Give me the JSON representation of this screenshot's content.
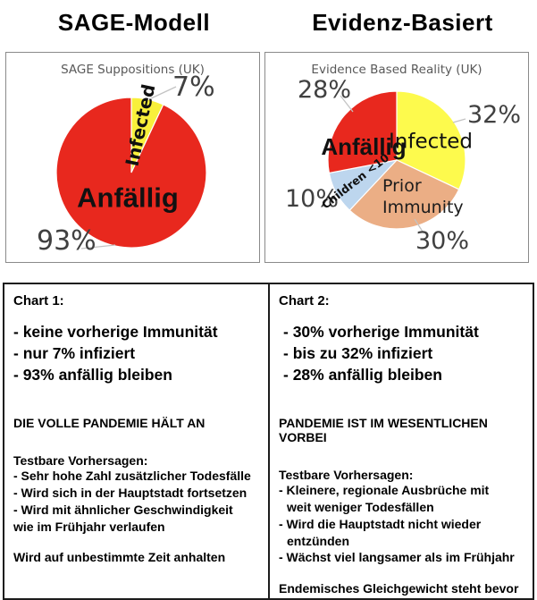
{
  "header": {
    "left_title": "SAGE-Modell",
    "right_title": "Evidenz-Basiert"
  },
  "chart_data": [
    {
      "type": "pie",
      "title": "SAGE Suppositions (UK)",
      "start_angle_deg": 0,
      "direction": "clockwise",
      "legend": "none",
      "slices": [
        {
          "label": "Infected",
          "value": 7,
          "callout": "7%",
          "color": "#f8ef3b"
        },
        {
          "label": "Anfällig",
          "value": 93,
          "callout": "93%",
          "color": "#e8281e"
        }
      ]
    },
    {
      "type": "pie",
      "title": "Evidence Based Reality (UK)",
      "start_angle_deg": 0,
      "direction": "clockwise",
      "legend": "none",
      "slices": [
        {
          "label": "Infected",
          "value": 32,
          "callout": "32%",
          "color": "#fdfa4d"
        },
        {
          "label": "Prior Immunity",
          "value": 30,
          "callout": "30%",
          "color": "#ebae85"
        },
        {
          "label": "Children <10",
          "value": 10,
          "callout": "10%",
          "color": "#bdd6ee"
        },
        {
          "label": "Anfällig",
          "value": 28,
          "callout": "28%",
          "color": "#e8281e"
        }
      ]
    }
  ],
  "notes": {
    "left": {
      "heading": "Chart 1:",
      "bullets": [
        "- keine vorherige Immunität",
        "- nur 7% infiziert",
        "- 93% anfällig bleiben"
      ],
      "statement": "DIE VOLLE PANDEMIE HÄLT AN",
      "predictions_heading": "Testbare Vorhersagen:",
      "predictions": [
        "- Sehr hohe Zahl zusätzlicher Todesfälle",
        "- Wird sich in der Hauptstadt fortsetzen",
        "- Wird mit ähnlicher Geschwindigkeit",
        "wie im Frühjahr verlaufen"
      ],
      "conclusion": "Wird auf unbestimmte Zeit anhalten"
    },
    "right": {
      "heading": "Chart 2:",
      "bullets": [
        "- 30% vorherige Immunität",
        "- bis zu 32% infiziert",
        "- 28% anfällig bleiben"
      ],
      "statement": "PANDEMIE IST IM WESENTLICHEN VORBEI",
      "predictions_heading": "Testbare Vorhersagen:",
      "predictions": [
        "- Kleinere, regionale Ausbrüche mit",
        "weit weniger Todesfällen",
        "- Wird die Hauptstadt nicht wieder",
        "entzünden",
        "- Wächst viel langsamer als im Frühjahr"
      ],
      "conclusion": "Endemisches Gleichgewicht steht bevor"
    }
  }
}
